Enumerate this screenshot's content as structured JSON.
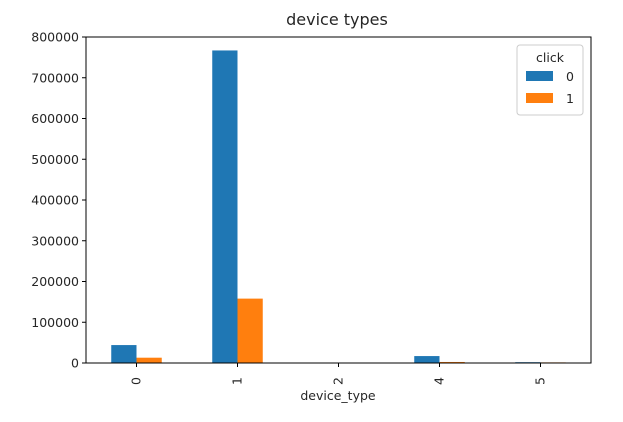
{
  "chart_data": {
    "type": "bar",
    "title": "device types",
    "xlabel": "device_type",
    "ylabel": "",
    "categories": [
      "0",
      "1",
      "2",
      "4",
      "5"
    ],
    "series": [
      {
        "name": "0",
        "color": "#1f77b4",
        "values": [
          44000,
          767000,
          0,
          17000,
          2000
        ]
      },
      {
        "name": "1",
        "color": "#ff7f0e",
        "values": [
          13000,
          158000,
          0,
          2500,
          1500
        ]
      }
    ],
    "ylim": [
      0,
      800000
    ],
    "yticks": [
      0,
      100000,
      200000,
      300000,
      400000,
      500000,
      600000,
      700000,
      800000
    ],
    "legend": {
      "title": "click",
      "placement": "top-right"
    },
    "grid": false
  }
}
